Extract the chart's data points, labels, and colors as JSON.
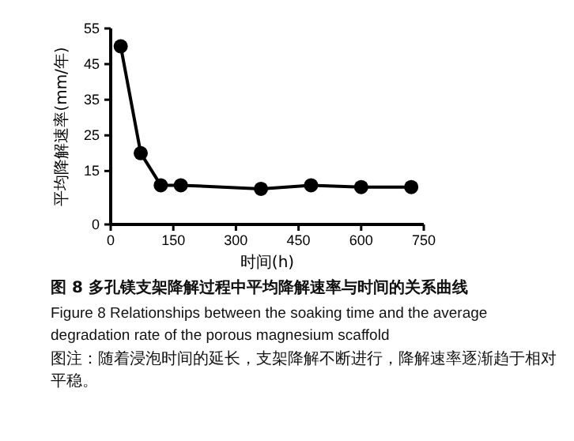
{
  "chart_data": {
    "type": "line",
    "title": "图 8   多孔镁支架降解过程中平均降解速率与时间的关系曲线",
    "subtitle": "Figure 8    Relationships between the soaking time and the average degradation rate of the porous magnesium scaffold",
    "annotations": [
      "图注：随着浸泡时间的延长，支架降解不断进行，降解速率逐渐趋于相对平稳。"
    ],
    "xlabel": "时间(h)",
    "ylabel": "平均降解速率(mm/年)",
    "x": [
      24,
      72,
      120,
      168,
      360,
      480,
      600,
      720
    ],
    "series": [
      {
        "color": "#000000",
        "values": [
          50,
          20,
          11,
          11,
          10,
          11,
          10.5,
          10.5
        ]
      }
    ],
    "xlim": [
      0,
      750
    ],
    "xticks": [
      0,
      150,
      300,
      450,
      600,
      750
    ],
    "ylim": [
      0,
      55
    ],
    "yticks": [
      0,
      15,
      25,
      35,
      45,
      55
    ],
    "marker": "circle",
    "line_style": "solid",
    "grid": false
  }
}
